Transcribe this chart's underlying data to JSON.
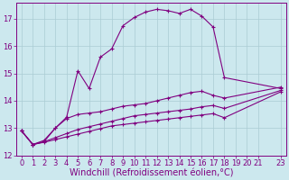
{
  "background_color": "#cce8ee",
  "line_color": "#800080",
  "grid_color": "#aaccd4",
  "xlabel": "Windchill (Refroidissement éolien,°C)",
  "xlabel_fontsize": 7,
  "tick_fontsize": 6,
  "xlim": [
    -0.5,
    23.5
  ],
  "ylim": [
    12,
    17.6
  ],
  "yticks": [
    12,
    13,
    14,
    15,
    16,
    17
  ],
  "xtick_positions": [
    0,
    1,
    2,
    3,
    4,
    5,
    6,
    7,
    8,
    9,
    10,
    11,
    12,
    13,
    14,
    15,
    16,
    17,
    18,
    19,
    20,
    21,
    23
  ],
  "xtick_labels": [
    "0",
    "1",
    "2",
    "3",
    "4",
    "5",
    "6",
    "7",
    "8",
    "9",
    "10",
    "11",
    "12",
    "13",
    "14",
    "15",
    "16",
    "17",
    "18",
    "19",
    "20",
    "21",
    "23"
  ],
  "series": [
    {
      "x": [
        0,
        1,
        2,
        3,
        4,
        5,
        6,
        7,
        8,
        9,
        10,
        11,
        12,
        13,
        14,
        15,
        16,
        17,
        18,
        23
      ],
      "y": [
        12.9,
        12.4,
        12.5,
        13.0,
        13.4,
        15.1,
        14.45,
        15.6,
        15.9,
        16.75,
        17.05,
        17.25,
        17.35,
        17.3,
        17.2,
        17.35,
        17.1,
        16.7,
        14.85,
        14.45
      ]
    },
    {
      "x": [
        0,
        1,
        2,
        3,
        4,
        5,
        6,
        7,
        8,
        9,
        10,
        11,
        12,
        13,
        14,
        15,
        16,
        17,
        18,
        23
      ],
      "y": [
        12.9,
        12.4,
        12.55,
        13.0,
        13.35,
        13.5,
        13.55,
        13.6,
        13.7,
        13.8,
        13.85,
        13.9,
        14.0,
        14.1,
        14.2,
        14.3,
        14.35,
        14.2,
        14.1,
        14.5
      ]
    },
    {
      "x": [
        0,
        1,
        2,
        3,
        4,
        5,
        6,
        7,
        8,
        9,
        10,
        11,
        12,
        13,
        14,
        15,
        16,
        17,
        18,
        23
      ],
      "y": [
        12.9,
        12.4,
        12.5,
        12.65,
        12.8,
        12.95,
        13.05,
        13.15,
        13.25,
        13.35,
        13.45,
        13.5,
        13.55,
        13.6,
        13.65,
        13.7,
        13.78,
        13.83,
        13.72,
        14.38
      ]
    },
    {
      "x": [
        0,
        1,
        2,
        3,
        4,
        5,
        6,
        7,
        8,
        9,
        10,
        11,
        12,
        13,
        14,
        15,
        16,
        17,
        18,
        23
      ],
      "y": [
        12.9,
        12.4,
        12.48,
        12.58,
        12.68,
        12.78,
        12.88,
        12.98,
        13.08,
        13.13,
        13.18,
        13.23,
        13.28,
        13.33,
        13.38,
        13.43,
        13.48,
        13.53,
        13.38,
        14.33
      ]
    }
  ]
}
